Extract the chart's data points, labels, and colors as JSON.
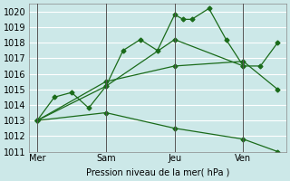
{
  "bg_color": "#cce8e8",
  "grid_color": "#ffffff",
  "line_color": "#1a6b1a",
  "ylabel": "Pression niveau de la mer( hPa )",
  "ylim": [
    1011,
    1020.5
  ],
  "yticks": [
    1011,
    1012,
    1013,
    1014,
    1015,
    1016,
    1017,
    1018,
    1019,
    1020
  ],
  "xtick_labels": [
    "Mer",
    "Sam",
    "Jeu",
    "Ven"
  ],
  "xtick_positions": [
    0,
    4,
    8,
    12
  ],
  "vlines": [
    0,
    4,
    8,
    12
  ],
  "series": [
    {
      "x": [
        0,
        1,
        2,
        3,
        4,
        5,
        6,
        7,
        8,
        8.5,
        9,
        10,
        11,
        12,
        13,
        14
      ],
      "y": [
        1013.0,
        1014.5,
        1014.8,
        1013.8,
        1015.2,
        1017.5,
        1018.2,
        1017.5,
        1019.8,
        1019.5,
        1019.5,
        1020.2,
        1018.2,
        1016.5,
        1016.5,
        1018.0
      ]
    },
    {
      "x": [
        0,
        4,
        8,
        12
      ],
      "y": [
        1013.0,
        1015.2,
        1018.2,
        1016.5
      ]
    },
    {
      "x": [
        0,
        4,
        8,
        12,
        14
      ],
      "y": [
        1013.0,
        1015.5,
        1016.5,
        1016.8,
        1015.0
      ]
    },
    {
      "x": [
        0,
        4,
        8,
        12,
        14
      ],
      "y": [
        1013.0,
        1013.5,
        1012.5,
        1011.8,
        1011.0
      ]
    }
  ]
}
